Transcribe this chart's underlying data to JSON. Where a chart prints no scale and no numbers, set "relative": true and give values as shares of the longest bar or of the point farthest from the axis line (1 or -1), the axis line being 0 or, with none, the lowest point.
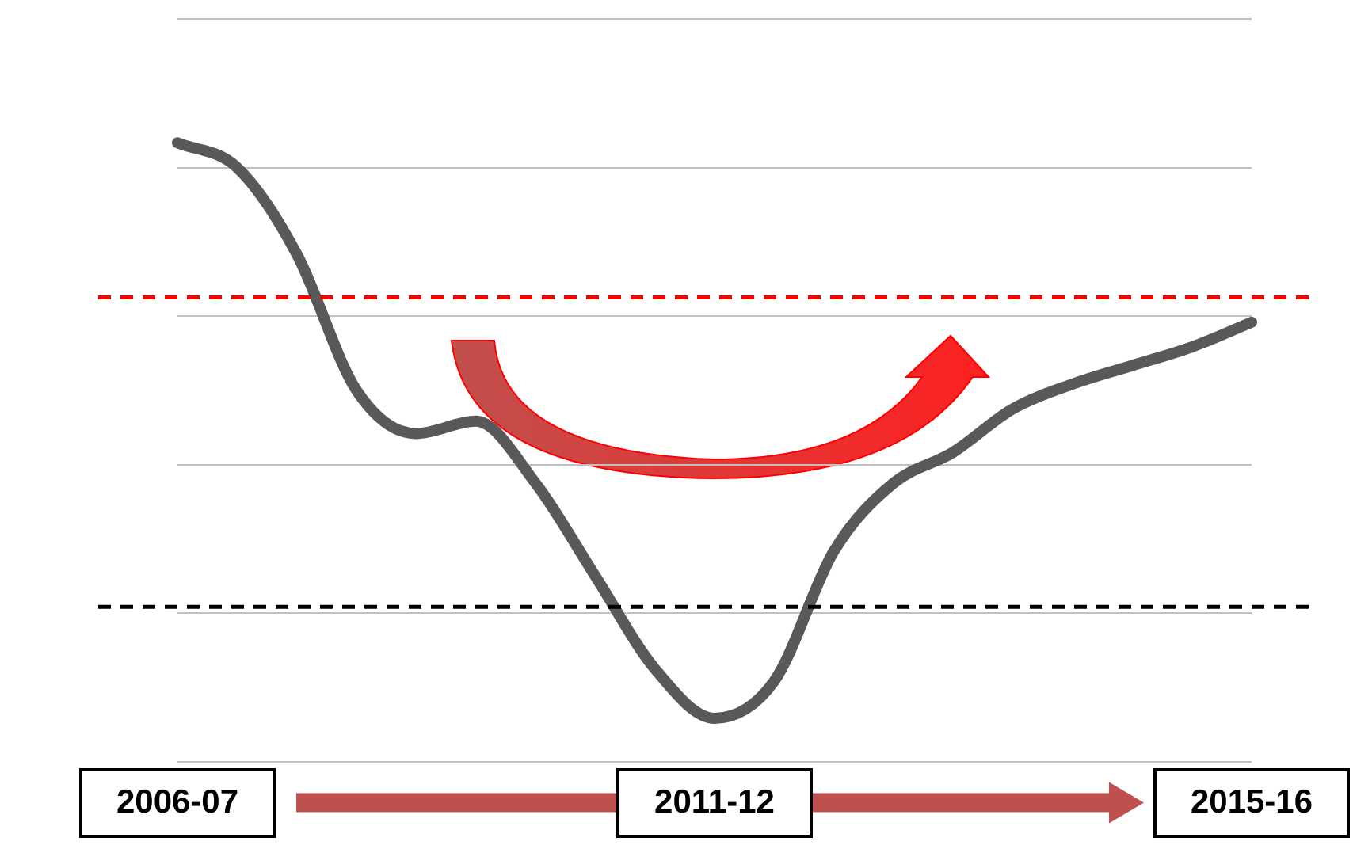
{
  "chart_data": {
    "type": "line",
    "relative": true,
    "categories": [
      "2006-07",
      null,
      null,
      null,
      null,
      null,
      null,
      null,
      null,
      "2011-12",
      null,
      null,
      null,
      null,
      null,
      null,
      null,
      null,
      "2015-16"
    ],
    "series": [
      {
        "color": "#595959",
        "values": [
          1.0,
          0.96,
          0.82,
          0.6,
          0.53,
          0.55,
          0.45,
          0.3,
          0.15,
          0.07,
          0.13,
          0.34,
          0.45,
          0.5,
          0.57,
          0.61,
          0.64,
          0.67,
          0.71
        ]
      }
    ],
    "ref_lines": [
      {
        "axis": "y",
        "value": 0.75,
        "color": "#ff0000",
        "line_style": "dashed"
      },
      {
        "axis": "y",
        "value": 0.25,
        "color": "#000000",
        "line_style": "dashed"
      }
    ],
    "grid": "y",
    "legend": false,
    "marker": "none",
    "line_style": "solid"
  }
}
